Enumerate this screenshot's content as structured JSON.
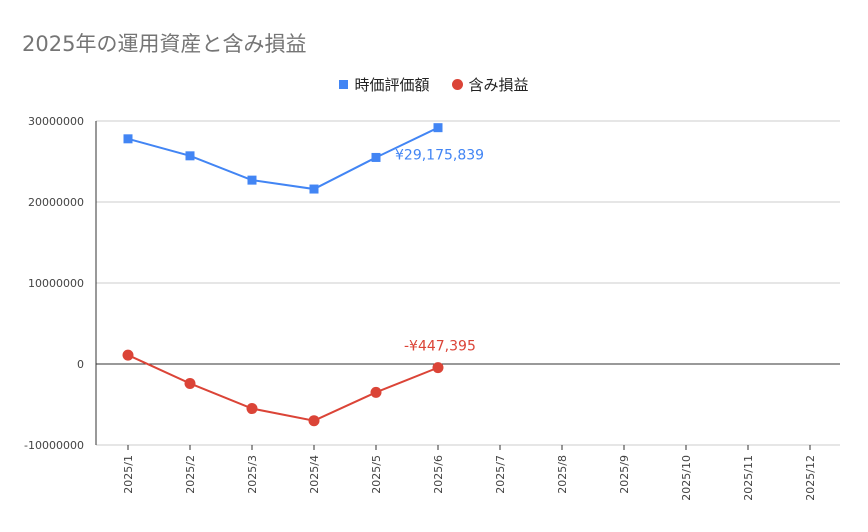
{
  "chart_data": {
    "type": "line",
    "title": "2025年の運用資産と含み損益",
    "categories": [
      "2025/1",
      "2025/2",
      "2025/3",
      "2025/4",
      "2025/5",
      "2025/6",
      "2025/7",
      "2025/8",
      "2025/9",
      "2025/10",
      "2025/11",
      "2025/12"
    ],
    "series": [
      {
        "name": "時価評価額",
        "color": "#4285f4",
        "marker": "square",
        "values": [
          27800000,
          25700000,
          22700000,
          21600000,
          25500000,
          29175839,
          null,
          null,
          null,
          null,
          null,
          null
        ],
        "annotation": {
          "index": 5,
          "text": "¥29,175,839"
        }
      },
      {
        "name": "含み損益",
        "color": "#db4437",
        "marker": "circle",
        "values": [
          1100000,
          -2400000,
          -5500000,
          -7000000,
          -3500000,
          -447395,
          null,
          null,
          null,
          null,
          null,
          null
        ],
        "annotation": {
          "index": 5,
          "text": "-¥447,395"
        }
      }
    ],
    "y_ticks": [
      "30000000",
      "20000000",
      "10000000",
      "0",
      "-10000000"
    ],
    "y_tick_values": [
      30000000,
      20000000,
      10000000,
      0,
      -10000000
    ],
    "ylim": [
      -10000000,
      30000000
    ],
    "xlabel": "",
    "ylabel": "",
    "grid": true,
    "legend_position": "top"
  }
}
